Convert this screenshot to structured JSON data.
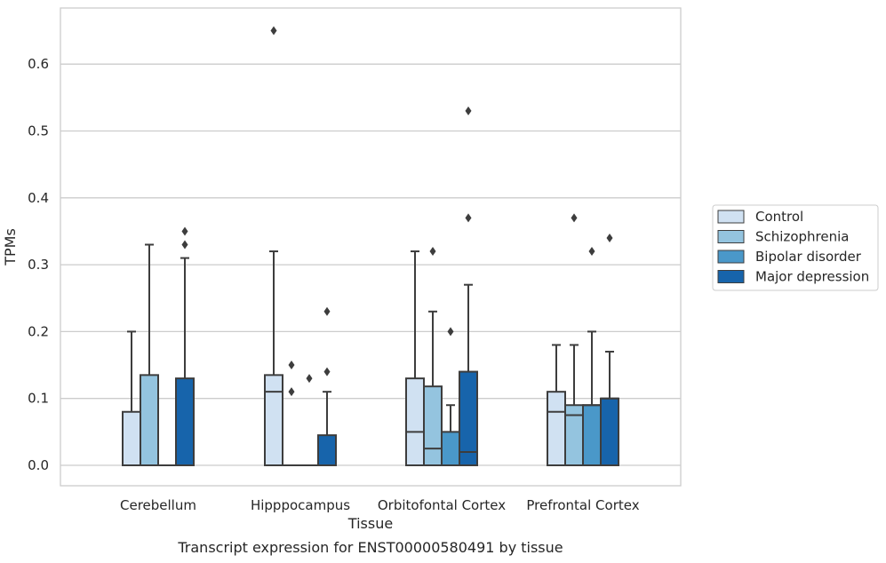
{
  "chart_data": {
    "type": "box",
    "title": "",
    "caption": "Transcript expression for ENST00000580491 by tissue",
    "xlabel": "Tissue",
    "ylabel": "TPMs",
    "ylim": [
      -0.032,
      0.683
    ],
    "yticks": [
      0.0,
      0.1,
      0.2,
      0.3,
      0.4,
      0.5,
      0.6
    ],
    "ytick_labels": [
      "0.0",
      "0.1",
      "0.2",
      "0.3",
      "0.4",
      "0.5",
      "0.6"
    ],
    "grid": "horizontal",
    "legend_position": "right",
    "categories": [
      "Cerebellum",
      "Hipppocampus",
      "Orbitofontal Cortex",
      "Prefrontal Cortex"
    ],
    "series": [
      {
        "name": "Control",
        "color": "#d0e1f2",
        "boxes": [
          {
            "q1": 0.0,
            "median": 0.0,
            "q3": 0.08,
            "whislo": 0.0,
            "whishi": 0.2,
            "fliers": []
          },
          {
            "q1": 0.0,
            "median": 0.11,
            "q3": 0.135,
            "whislo": 0.0,
            "whishi": 0.32,
            "fliers": [
              0.65
            ]
          },
          {
            "q1": 0.0,
            "median": 0.05,
            "q3": 0.13,
            "whislo": 0.0,
            "whishi": 0.32,
            "fliers": []
          },
          {
            "q1": 0.0,
            "median": 0.08,
            "q3": 0.11,
            "whislo": 0.0,
            "whishi": 0.18,
            "fliers": []
          }
        ]
      },
      {
        "name": "Schizophrenia",
        "color": "#94c4df",
        "boxes": [
          {
            "q1": 0.0,
            "median": 0.0,
            "q3": 0.135,
            "whislo": 0.0,
            "whishi": 0.33,
            "fliers": []
          },
          {
            "q1": 0.0,
            "median": 0.0,
            "q3": 0.0,
            "whislo": 0.0,
            "whishi": 0.0,
            "fliers": [
              0.11,
              0.15
            ]
          },
          {
            "q1": 0.0,
            "median": 0.025,
            "q3": 0.118,
            "whislo": 0.0,
            "whishi": 0.23,
            "fliers": [
              0.32
            ]
          },
          {
            "q1": 0.0,
            "median": 0.075,
            "q3": 0.09,
            "whislo": 0.0,
            "whishi": 0.18,
            "fliers": [
              0.37
            ]
          }
        ]
      },
      {
        "name": "Bipolar disorder",
        "color": "#4a98c9",
        "boxes": [
          {
            "q1": 0.0,
            "median": 0.0,
            "q3": 0.0,
            "whislo": 0.0,
            "whishi": 0.0,
            "fliers": []
          },
          {
            "q1": 0.0,
            "median": 0.0,
            "q3": 0.0,
            "whislo": 0.0,
            "whishi": 0.0,
            "fliers": [
              0.13
            ]
          },
          {
            "q1": 0.0,
            "median": 0.0,
            "q3": 0.05,
            "whislo": 0.0,
            "whishi": 0.09,
            "fliers": [
              0.2
            ]
          },
          {
            "q1": 0.0,
            "median": 0.09,
            "q3": 0.09,
            "whislo": 0.0,
            "whishi": 0.2,
            "fliers": [
              0.32
            ]
          }
        ]
      },
      {
        "name": "Major depression",
        "color": "#1764ab",
        "boxes": [
          {
            "q1": 0.0,
            "median": 0.0,
            "q3": 0.13,
            "whislo": 0.0,
            "whishi": 0.31,
            "fliers": [
              0.33,
              0.35
            ]
          },
          {
            "q1": 0.0,
            "median": 0.0,
            "q3": 0.045,
            "whislo": 0.0,
            "whishi": 0.11,
            "fliers": [
              0.14,
              0.23
            ]
          },
          {
            "q1": 0.0,
            "median": 0.02,
            "q3": 0.14,
            "whislo": 0.0,
            "whishi": 0.27,
            "fliers": [
              0.37,
              0.53
            ]
          },
          {
            "q1": 0.0,
            "median": 0.1,
            "q3": 0.1,
            "whislo": 0.0,
            "whishi": 0.17,
            "fliers": [
              0.34
            ]
          }
        ]
      }
    ]
  }
}
